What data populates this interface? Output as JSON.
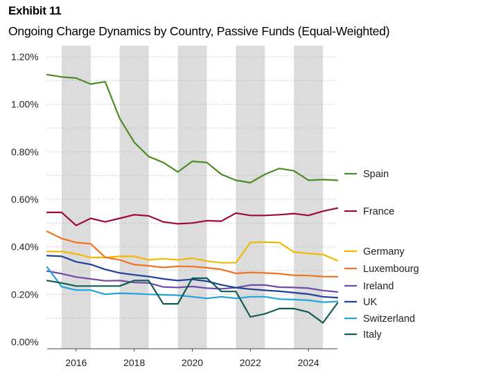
{
  "header": {
    "exhibit": "Exhibit 11",
    "title": "Ongoing Charge Dynamics by Country, Passive Funds (Equal-Weighted)"
  },
  "chart_data": {
    "type": "line",
    "title": "Ongoing Charge Dynamics by Country, Passive Funds (Equal-Weighted)",
    "xlabel": "",
    "ylabel": "",
    "xlim": [
      2015.0,
      2025.0
    ],
    "ylim": [
      0.0,
      1.2
    ],
    "y_ticks": [
      {
        "value": 0.0,
        "label": "0.00%"
      },
      {
        "value": 0.2,
        "label": "0.20%"
      },
      {
        "value": 0.4,
        "label": "0.40%"
      },
      {
        "value": 0.6,
        "label": "0.60%"
      },
      {
        "value": 0.8,
        "label": "0.80%"
      },
      {
        "value": 1.0,
        "label": "1.00%"
      },
      {
        "value": 1.2,
        "label": "1.20%"
      }
    ],
    "x_ticks": [
      {
        "value": 2016,
        "label": "2016"
      },
      {
        "value": 2018,
        "label": "2018"
      },
      {
        "value": 2020,
        "label": "2020"
      },
      {
        "value": 2022,
        "label": "2022"
      },
      {
        "value": 2024,
        "label": "2024"
      }
    ],
    "shaded_bands": [
      [
        2015.5,
        2016.5
      ],
      [
        2017.5,
        2018.5
      ],
      [
        2019.5,
        2020.5
      ],
      [
        2021.5,
        2022.5
      ],
      [
        2023.5,
        2024.5
      ]
    ],
    "grid": "horizontal dotted",
    "legend_position": "right",
    "x": [
      2015.0,
      2015.5,
      2016.0,
      2016.5,
      2017.0,
      2017.5,
      2018.0,
      2018.5,
      2019.0,
      2019.5,
      2020.0,
      2020.5,
      2021.0,
      2021.5,
      2022.0,
      2022.5,
      2023.0,
      2023.5,
      2024.0,
      2024.5,
      2025.0
    ],
    "series": [
      {
        "name": "Spain",
        "color": "#4d8a24",
        "values": [
          1.125,
          1.115,
          1.11,
          1.085,
          1.095,
          0.94,
          0.84,
          0.78,
          0.755,
          0.715,
          0.76,
          0.755,
          0.705,
          0.68,
          0.67,
          0.705,
          0.73,
          0.72,
          0.68,
          0.683,
          0.68
        ]
      },
      {
        "name": "France",
        "color": "#9c0a3c",
        "values": [
          0.545,
          0.545,
          0.49,
          0.52,
          0.505,
          0.52,
          0.535,
          0.53,
          0.505,
          0.497,
          0.5,
          0.51,
          0.508,
          0.542,
          0.532,
          0.532,
          0.535,
          0.54,
          0.532,
          0.55,
          0.563
        ]
      },
      {
        "name": "Germany",
        "color": "#f2b800",
        "values": [
          0.38,
          0.38,
          0.37,
          0.355,
          0.355,
          0.36,
          0.36,
          0.345,
          0.35,
          0.345,
          0.352,
          0.34,
          0.333,
          0.333,
          0.418,
          0.42,
          0.418,
          0.378,
          0.372,
          0.368,
          0.342
        ]
      },
      {
        "name": "Luxembourg",
        "color": "#f0731e",
        "values": [
          0.465,
          0.435,
          0.418,
          0.413,
          0.356,
          0.345,
          0.325,
          0.32,
          0.313,
          0.318,
          0.317,
          0.312,
          0.305,
          0.288,
          0.292,
          0.29,
          0.287,
          0.28,
          0.279,
          0.275,
          0.274
        ]
      },
      {
        "name": "Ireland",
        "color": "#6f4ba8",
        "values": [
          0.298,
          0.287,
          0.273,
          0.265,
          0.257,
          0.258,
          0.25,
          0.248,
          0.231,
          0.229,
          0.233,
          0.226,
          0.223,
          0.228,
          0.239,
          0.239,
          0.23,
          0.229,
          0.226,
          0.216,
          0.21
        ]
      },
      {
        "name": "UK",
        "color": "#1f3f99",
        "values": [
          0.363,
          0.36,
          0.337,
          0.326,
          0.305,
          0.29,
          0.282,
          0.275,
          0.265,
          0.258,
          0.263,
          0.255,
          0.24,
          0.228,
          0.222,
          0.217,
          0.213,
          0.207,
          0.201,
          0.19,
          0.186
        ]
      },
      {
        "name": "Switzerland",
        "color": "#1fa3e0",
        "values": [
          0.315,
          0.232,
          0.218,
          0.218,
          0.2,
          0.205,
          0.203,
          0.2,
          0.198,
          0.196,
          0.19,
          0.183,
          0.19,
          0.183,
          0.19,
          0.19,
          0.18,
          0.178,
          0.175,
          0.167,
          0.17
        ]
      },
      {
        "name": "Italy",
        "color": "#0f5c52",
        "values": [
          0.258,
          0.248,
          0.235,
          0.235,
          0.235,
          0.235,
          0.258,
          0.258,
          0.16,
          0.16,
          0.268,
          0.268,
          0.212,
          0.212,
          0.105,
          0.118,
          0.14,
          0.14,
          0.125,
          0.08,
          0.163
        ]
      }
    ]
  }
}
